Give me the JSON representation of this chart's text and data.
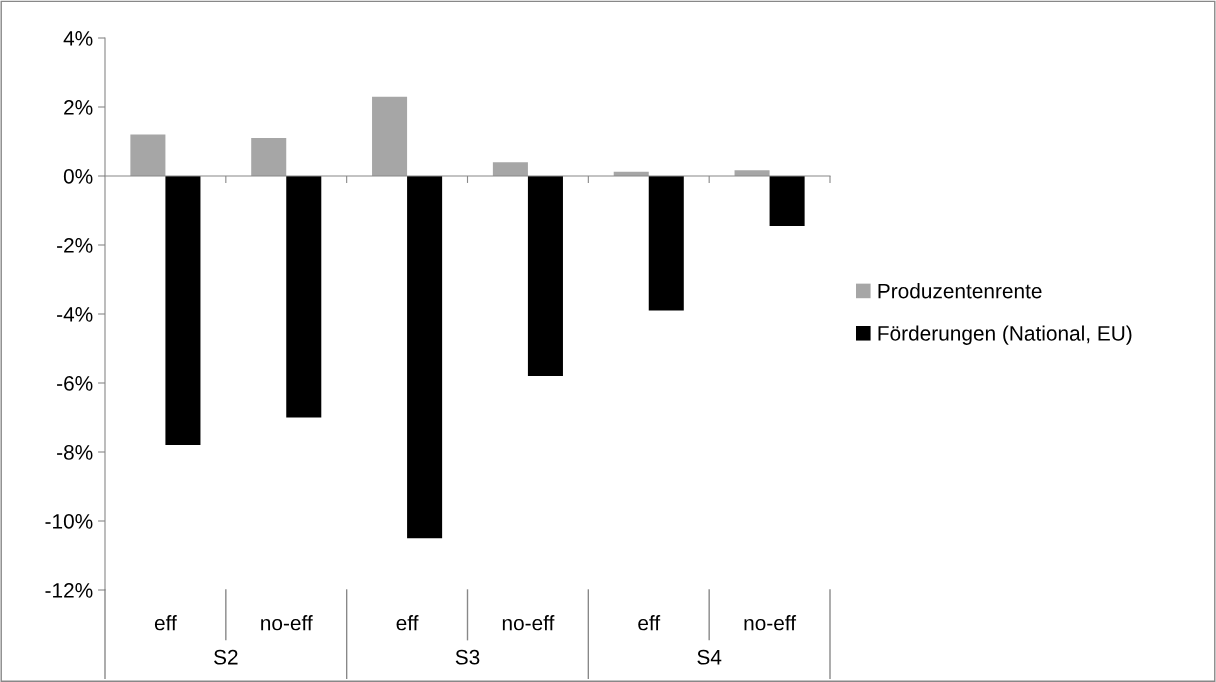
{
  "chart_data": {
    "type": "bar",
    "categories": [
      "eff",
      "no-eff",
      "eff",
      "no-eff",
      "eff",
      "no-eff"
    ],
    "annotations": [
      "S2",
      "S3",
      "S4"
    ],
    "series": [
      {
        "name": "Produzentenrente",
        "color": "#a6a6a6",
        "values": [
          1.2,
          1.1,
          2.3,
          0.4,
          0.12,
          0.17
        ]
      },
      {
        "name": "Förderungen (National, EU)",
        "color": "#000000",
        "values": [
          -7.8,
          -7.0,
          -10.5,
          -5.8,
          -3.9,
          -1.45
        ]
      }
    ],
    "ylim": [
      -12,
      4
    ],
    "yticks": [
      {
        "value": -12,
        "label": "-12%"
      },
      {
        "value": -10,
        "label": "-10%"
      },
      {
        "value": -8,
        "label": "-8%"
      },
      {
        "value": -6,
        "label": "-6%"
      },
      {
        "value": -4,
        "label": "-4%"
      },
      {
        "value": -2,
        "label": "-2%"
      },
      {
        "value": 0,
        "label": "0%"
      },
      {
        "value": 2,
        "label": "2%"
      },
      {
        "value": 4,
        "label": "4%"
      }
    ],
    "legend": "right"
  }
}
